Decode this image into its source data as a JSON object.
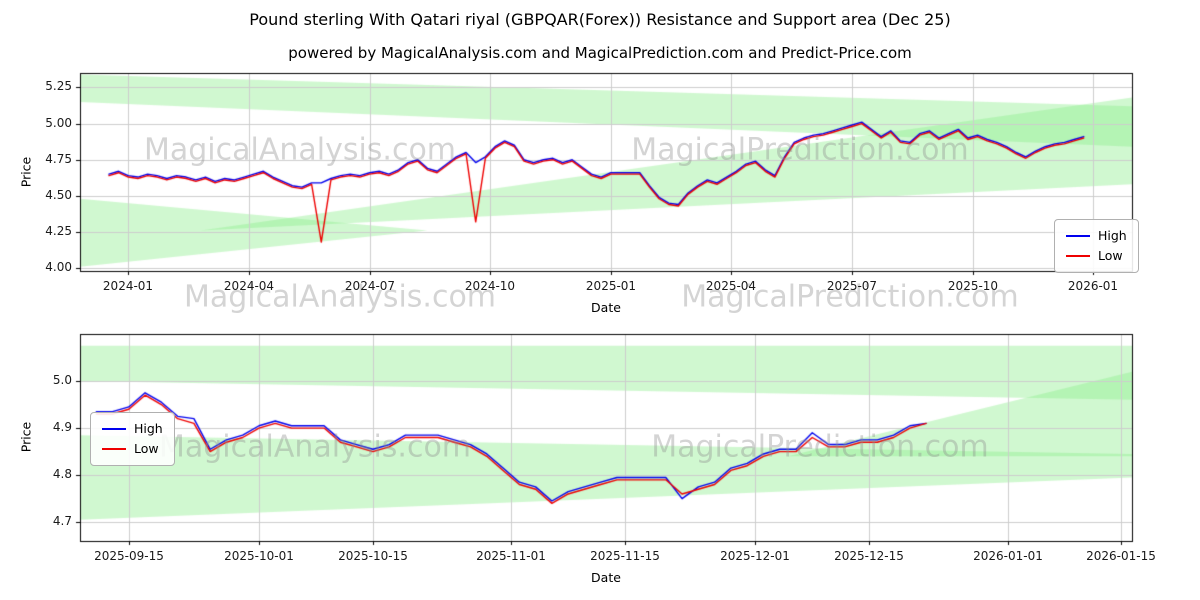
{
  "figure": {
    "title": "Pound sterling With Qatari riyal (GBPQAR(Forex)) Resistance and Support area (Dec 25)",
    "subtitle": "powered by MagicalAnalysis.com and MagicalPrediction.com and Predict-Price.com",
    "background": "#ffffff"
  },
  "watermarks": {
    "left": "MagicalAnalysis.com",
    "right": "MagicalPrediction.com"
  },
  "colors": {
    "high": "#0000ee",
    "low": "#ee0000",
    "band": "#90ee90",
    "grid": "#cccccc",
    "spine": "#000000"
  },
  "legend": {
    "entries": [
      "High",
      "Low"
    ]
  },
  "chart_data": [
    {
      "type": "line",
      "title": "",
      "xlabel": "Date",
      "ylabel": "Price",
      "xlim": [
        2023.9,
        2026.08
      ],
      "ylim": [
        3.98,
        5.35
      ],
      "grid": true,
      "legend_position": "right",
      "xticks": {
        "positions": [
          2024.0,
          2024.25,
          2024.5,
          2024.75,
          2025.0,
          2025.25,
          2025.5,
          2025.75,
          2026.0
        ],
        "labels": [
          "2024-01",
          "2024-04",
          "2024-07",
          "2024-10",
          "2025-01",
          "2025-04",
          "2025-07",
          "2025-10",
          "2026-01"
        ]
      },
      "yticks": {
        "positions": [
          4.0,
          4.25,
          4.5,
          4.75,
          5.0,
          5.25
        ],
        "labels": [
          "4.00",
          "4.25",
          "4.50",
          "4.75",
          "5.00",
          "5.25"
        ]
      },
      "x_start": 2023.96,
      "x_step": 0.02,
      "series": [
        {
          "name": "High",
          "color_key": "high",
          "values": [
            4.65,
            4.67,
            4.64,
            4.63,
            4.65,
            4.64,
            4.62,
            4.64,
            4.63,
            4.61,
            4.63,
            4.6,
            4.62,
            4.61,
            4.63,
            4.65,
            4.67,
            4.63,
            4.6,
            4.57,
            4.56,
            4.59,
            4.59,
            4.62,
            4.64,
            4.65,
            4.64,
            4.66,
            4.67,
            4.65,
            4.68,
            4.73,
            4.75,
            4.69,
            4.67,
            4.72,
            4.77,
            4.8,
            4.73,
            4.77,
            4.84,
            4.88,
            4.85,
            4.75,
            4.73,
            4.75,
            4.76,
            4.73,
            4.75,
            4.7,
            4.65,
            4.63,
            4.66,
            4.66,
            4.66,
            4.66,
            4.57,
            4.49,
            4.45,
            4.44,
            4.52,
            4.57,
            4.61,
            4.59,
            4.63,
            4.67,
            4.72,
            4.74,
            4.68,
            4.64,
            4.77,
            4.87,
            4.9,
            4.92,
            4.93,
            4.95,
            4.97,
            4.99,
            5.01,
            4.96,
            4.91,
            4.95,
            4.88,
            4.87,
            4.93,
            4.95,
            4.9,
            4.93,
            4.96,
            4.9,
            4.92,
            4.89,
            4.87,
            4.84,
            4.8,
            4.77,
            4.81,
            4.84,
            4.86,
            4.87,
            4.89,
            4.91
          ]
        },
        {
          "name": "Low",
          "color_key": "low",
          "values": [
            4.64,
            4.66,
            4.63,
            4.62,
            4.64,
            4.63,
            4.61,
            4.63,
            4.62,
            4.6,
            4.62,
            4.59,
            4.61,
            4.6,
            4.62,
            4.64,
            4.66,
            4.62,
            4.59,
            4.56,
            4.55,
            4.58,
            4.18,
            4.61,
            4.63,
            4.64,
            4.63,
            4.65,
            4.66,
            4.64,
            4.67,
            4.72,
            4.74,
            4.68,
            4.66,
            4.71,
            4.76,
            4.79,
            4.32,
            4.76,
            4.83,
            4.87,
            4.84,
            4.74,
            4.72,
            4.74,
            4.75,
            4.72,
            4.74,
            4.69,
            4.64,
            4.62,
            4.65,
            4.65,
            4.65,
            4.65,
            4.56,
            4.48,
            4.44,
            4.43,
            4.51,
            4.56,
            4.6,
            4.58,
            4.62,
            4.66,
            4.71,
            4.73,
            4.67,
            4.63,
            4.76,
            4.86,
            4.89,
            4.91,
            4.92,
            4.94,
            4.96,
            4.98,
            5.0,
            4.95,
            4.9,
            4.94,
            4.87,
            4.86,
            4.92,
            4.94,
            4.89,
            4.92,
            4.95,
            4.89,
            4.91,
            4.88,
            4.86,
            4.83,
            4.79,
            4.76,
            4.8,
            4.83,
            4.85,
            4.86,
            4.88,
            4.9
          ]
        }
      ],
      "bands": [
        {
          "points": [
            [
              2023.9,
              5.34
            ],
            [
              2026.08,
              5.12
            ],
            [
              2026.08,
              4.84
            ],
            [
              2023.9,
              5.15
            ]
          ]
        },
        {
          "points": [
            [
              2023.9,
              4.48
            ],
            [
              2024.62,
              4.26
            ],
            [
              2023.9,
              4.01
            ]
          ]
        },
        {
          "points": [
            [
              2024.15,
              4.26
            ],
            [
              2026.08,
              5.18
            ],
            [
              2026.08,
              4.58
            ]
          ]
        }
      ]
    },
    {
      "type": "line",
      "title": "",
      "xlabel": "Date",
      "ylabel": "Price",
      "xlim": [
        8,
        137.3
      ],
      "ylim": [
        4.66,
        5.1
      ],
      "grid": true,
      "legend_position": "left",
      "xticks": {
        "positions": [
          14,
          30,
          44,
          61,
          75,
          91,
          105,
          122,
          136
        ],
        "labels": [
          "2025-09-15",
          "2025-10-01",
          "2025-10-15",
          "2025-11-01",
          "2025-11-15",
          "2025-12-01",
          "2025-12-15",
          "2026-01-01",
          "2026-01-15"
        ]
      },
      "yticks": {
        "positions": [
          4.7,
          4.8,
          4.9,
          5.0
        ],
        "labels": [
          "4.7",
          "4.8",
          "4.9",
          "5.0"
        ]
      },
      "x_start": 10,
      "x_step": 2,
      "series": [
        {
          "name": "High",
          "color_key": "high",
          "values": [
            4.935,
            4.935,
            4.945,
            4.975,
            4.955,
            4.925,
            4.92,
            4.855,
            4.875,
            4.885,
            4.905,
            4.915,
            4.905,
            4.905,
            4.905,
            4.875,
            4.865,
            4.855,
            4.865,
            4.885,
            4.885,
            4.885,
            4.875,
            4.865,
            4.845,
            4.815,
            4.785,
            4.775,
            4.745,
            4.765,
            4.775,
            4.785,
            4.795,
            4.795,
            4.795,
            4.795,
            4.75,
            4.775,
            4.785,
            4.815,
            4.825,
            4.845,
            4.855,
            4.855,
            4.89,
            4.865,
            4.865,
            4.875,
            4.875,
            4.885,
            4.905,
            4.91
          ]
        },
        {
          "name": "Low",
          "color_key": "low",
          "values": [
            4.93,
            4.93,
            4.94,
            4.97,
            4.95,
            4.92,
            4.91,
            4.85,
            4.87,
            4.88,
            4.9,
            4.91,
            4.9,
            4.9,
            4.9,
            4.87,
            4.86,
            4.85,
            4.86,
            4.88,
            4.88,
            4.88,
            4.87,
            4.86,
            4.84,
            4.81,
            4.78,
            4.77,
            4.74,
            4.76,
            4.77,
            4.78,
            4.79,
            4.79,
            4.79,
            4.79,
            4.76,
            4.77,
            4.78,
            4.81,
            4.82,
            4.84,
            4.85,
            4.85,
            4.88,
            4.86,
            4.86,
            4.87,
            4.87,
            4.88,
            4.9,
            4.91
          ]
        }
      ],
      "bands": [
        {
          "points": [
            [
              8,
              5.075
            ],
            [
              137.3,
              5.075
            ],
            [
              137.3,
              4.96
            ],
            [
              8,
              5.0
            ]
          ]
        },
        {
          "points": [
            [
              8,
              4.885
            ],
            [
              137.3,
              4.845
            ],
            [
              137.3,
              4.795
            ],
            [
              8,
              4.705
            ]
          ]
        },
        {
          "points": [
            [
              95,
              4.84
            ],
            [
              137.3,
              5.02
            ],
            [
              137.3,
              4.84
            ]
          ]
        }
      ]
    }
  ]
}
